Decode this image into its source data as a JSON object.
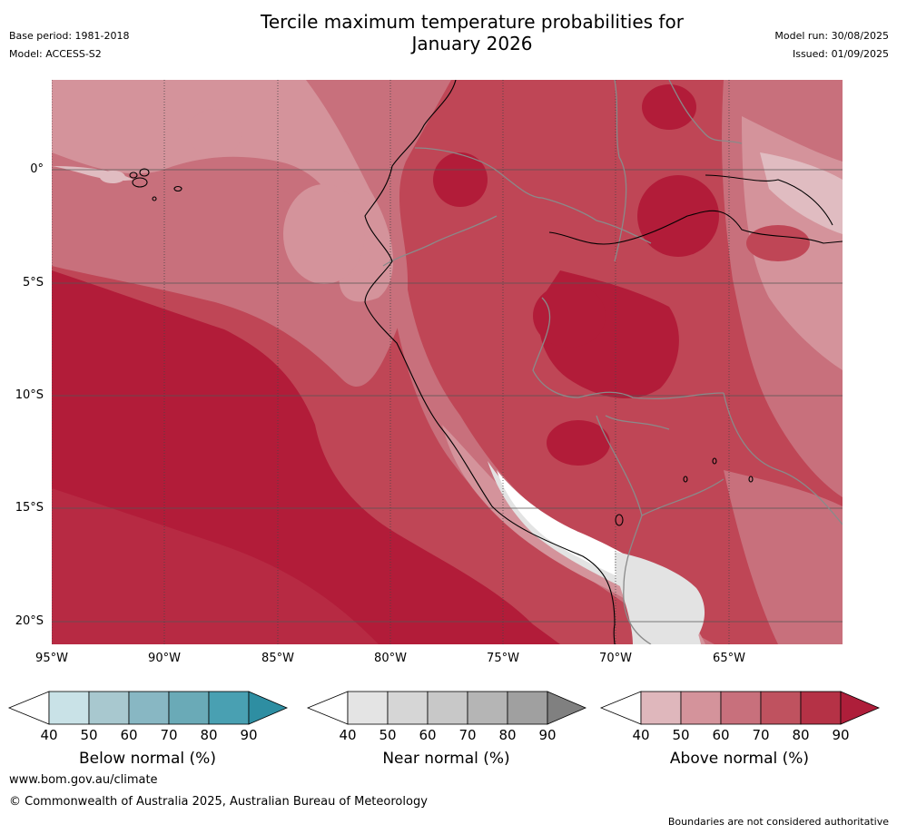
{
  "title_line1": "Tercile maximum temperature probabilities for",
  "title_line2": "January 2026",
  "base_period": "Base period: 1981-2018",
  "model": "Model: ACCESS-S2",
  "model_run": "Model run: 30/08/2025",
  "issued": "Issued: 01/09/2025",
  "lat_labels": [
    "0°",
    "5°S",
    "10°S",
    "15°S",
    "20°S"
  ],
  "lon_labels": [
    "95°W",
    "90°W",
    "85°W",
    "80°W",
    "75°W",
    "70°W",
    "65°W"
  ],
  "colorbars": [
    {
      "label": "Below normal (%)",
      "ticks": [
        "40",
        "50",
        "60",
        "70",
        "80",
        "90"
      ],
      "colors": [
        "#ffffff",
        "#c9e2e7",
        "#a8c8cf",
        "#88b7c3",
        "#6aaab7",
        "#49a0b2",
        "#2e8ea2"
      ]
    },
    {
      "label": "Near normal (%)",
      "ticks": [
        "40",
        "50",
        "60",
        "70",
        "80",
        "90"
      ],
      "colors": [
        "#ffffff",
        "#e4e4e4",
        "#d6d6d6",
        "#c8c8c8",
        "#b5b5b5",
        "#a0a0a0",
        "#808080"
      ]
    },
    {
      "label": "Above normal (%)",
      "ticks": [
        "40",
        "50",
        "60",
        "70",
        "80",
        "90"
      ],
      "colors": [
        "#ffffff",
        "#dfb7bc",
        "#d4939b",
        "#c8707c",
        "#bf525f",
        "#b53246",
        "#ae1e3a"
      ]
    }
  ],
  "footer_url": "www.bom.gov.au/climate",
  "footer_copyright": "© Commonwealth of Australia 2025, Australian Bureau of Meteorology",
  "footer_note": "Boundaries are not considered authoritative",
  "map_colors": {
    "deep": "#b21c39",
    "mid": "#bf4656",
    "light": "#c8707c",
    "pale": "#d4939b",
    "paler": "#e0bcc1",
    "gray": "#e3e3e3"
  }
}
